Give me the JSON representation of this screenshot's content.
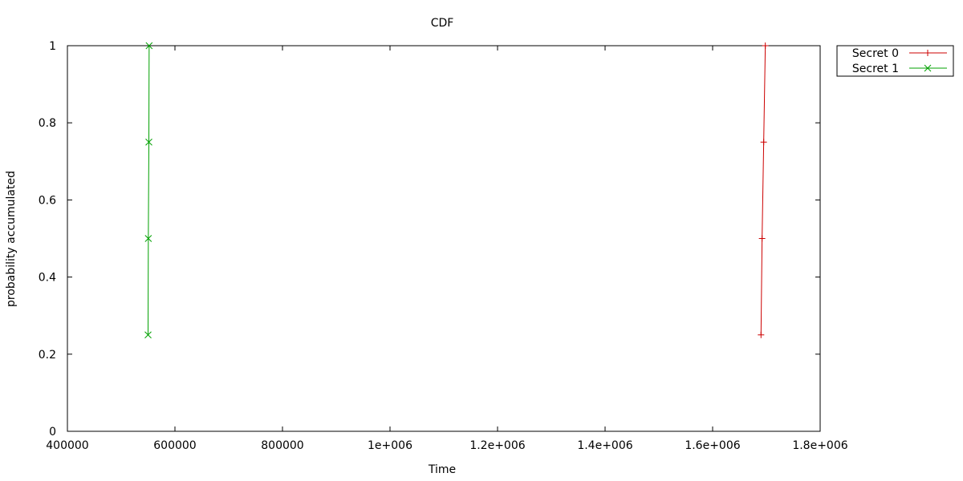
{
  "chart_data": {
    "type": "line",
    "title": "CDF",
    "xlabel": "Time",
    "ylabel": "probability accumulated",
    "xlim": [
      400000,
      1800000
    ],
    "ylim": [
      0,
      1
    ],
    "x_ticks": [
      400000,
      600000,
      800000,
      1000000,
      1200000,
      1400000,
      1600000,
      1800000
    ],
    "x_tick_labels": [
      "400000",
      "600000",
      "800000",
      "1e+006",
      "1.2e+006",
      "1.4e+006",
      "1.6e+006",
      "1.8e+006"
    ],
    "y_ticks": [
      0,
      0.2,
      0.4,
      0.6,
      0.8,
      1
    ],
    "y_tick_labels": [
      "0",
      "0.2",
      "0.4",
      "0.6",
      "0.8",
      "1"
    ],
    "grid": false,
    "legend_position": "outside-top-right",
    "series": [
      {
        "name": "Secret 0",
        "color": "#cc0000",
        "marker": "plus",
        "points": [
          {
            "x": 1690000,
            "y": 0.25
          },
          {
            "x": 1692000,
            "y": 0.5
          },
          {
            "x": 1695000,
            "y": 0.75
          },
          {
            "x": 1698000,
            "y": 1.0
          }
        ]
      },
      {
        "name": "Secret 1",
        "color": "#00a000",
        "marker": "cross",
        "points": [
          {
            "x": 550000,
            "y": 0.25
          },
          {
            "x": 550500,
            "y": 0.5
          },
          {
            "x": 551500,
            "y": 0.75
          },
          {
            "x": 552000,
            "y": 1.0
          }
        ]
      }
    ]
  }
}
